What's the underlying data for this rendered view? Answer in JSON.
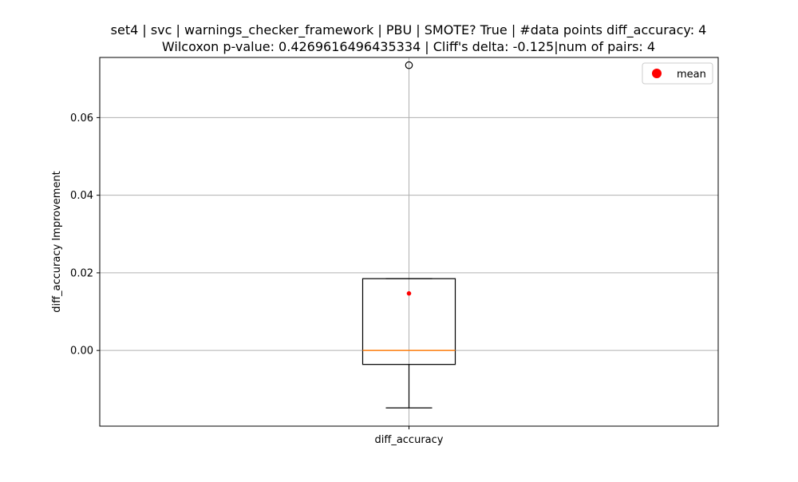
{
  "chart_data": {
    "type": "box",
    "title_line1": "set4 | svc | warnings_checker_framework | PBU | SMOTE? True | #data points diff_accuracy: 4",
    "title_line2": "Wilcoxon p-value: 0.4269616496435334 | Cliff's delta: -0.125|num of pairs: 4",
    "xlabel": "",
    "ylabel": "diff_accuracy Improvement",
    "categories": [
      "diff_accuracy"
    ],
    "ylim": [
      -0.0195,
      0.0755
    ],
    "yticks": [
      0.0,
      0.02,
      0.04,
      0.06
    ],
    "ytick_labels": [
      "0.00",
      "0.02",
      "0.04",
      "0.06"
    ],
    "grid": true,
    "box": {
      "whisker_low": -0.0148,
      "q1": -0.0036,
      "median": 0.0,
      "q3": 0.0185,
      "whisker_high": 0.0185,
      "mean": 0.0147,
      "outliers": [
        0.0735
      ]
    },
    "legend": {
      "position": "top-right",
      "entries": [
        {
          "label": "mean",
          "color": "#ff0000"
        }
      ]
    },
    "colors": {
      "median": "#ff7f0e",
      "mean": "#ff0000",
      "box": "#000000",
      "grid": "#b0b0b0"
    }
  }
}
